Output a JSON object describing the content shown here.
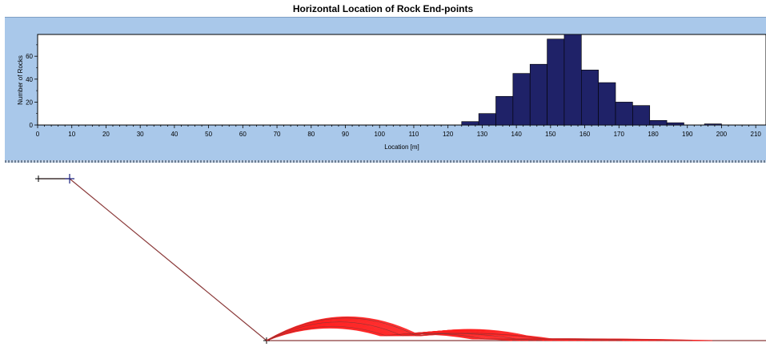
{
  "chart_data": {
    "type": "bar",
    "title": "Horizontal Location of Rock End-points",
    "xlabel": "Location [m]",
    "ylabel": "Number of Rocks",
    "xlim": [
      0,
      213
    ],
    "ylim": [
      0,
      79
    ],
    "x_ticks": [
      0,
      10,
      20,
      30,
      40,
      50,
      60,
      70,
      80,
      90,
      100,
      110,
      120,
      130,
      140,
      150,
      160,
      170,
      180,
      190,
      200,
      210
    ],
    "y_ticks": [
      0,
      20,
      40,
      60
    ],
    "bin_width": 5,
    "bins": [
      {
        "x0": 124,
        "count": 3
      },
      {
        "x0": 129,
        "count": 10
      },
      {
        "x0": 134,
        "count": 25
      },
      {
        "x0": 139,
        "count": 45
      },
      {
        "x0": 144,
        "count": 53
      },
      {
        "x0": 149,
        "count": 75
      },
      {
        "x0": 154,
        "count": 79
      },
      {
        "x0": 159,
        "count": 48
      },
      {
        "x0": 164,
        "count": 37
      },
      {
        "x0": 169,
        "count": 20
      },
      {
        "x0": 174,
        "count": 17
      },
      {
        "x0": 179,
        "count": 4
      },
      {
        "x0": 184,
        "count": 2
      },
      {
        "x0": 195,
        "count": 1
      }
    ],
    "bar_color": "#1f2268",
    "grid": false
  },
  "profile": {
    "slope_color": "#8b3a3a",
    "trajectory_color": "#ff2020"
  }
}
